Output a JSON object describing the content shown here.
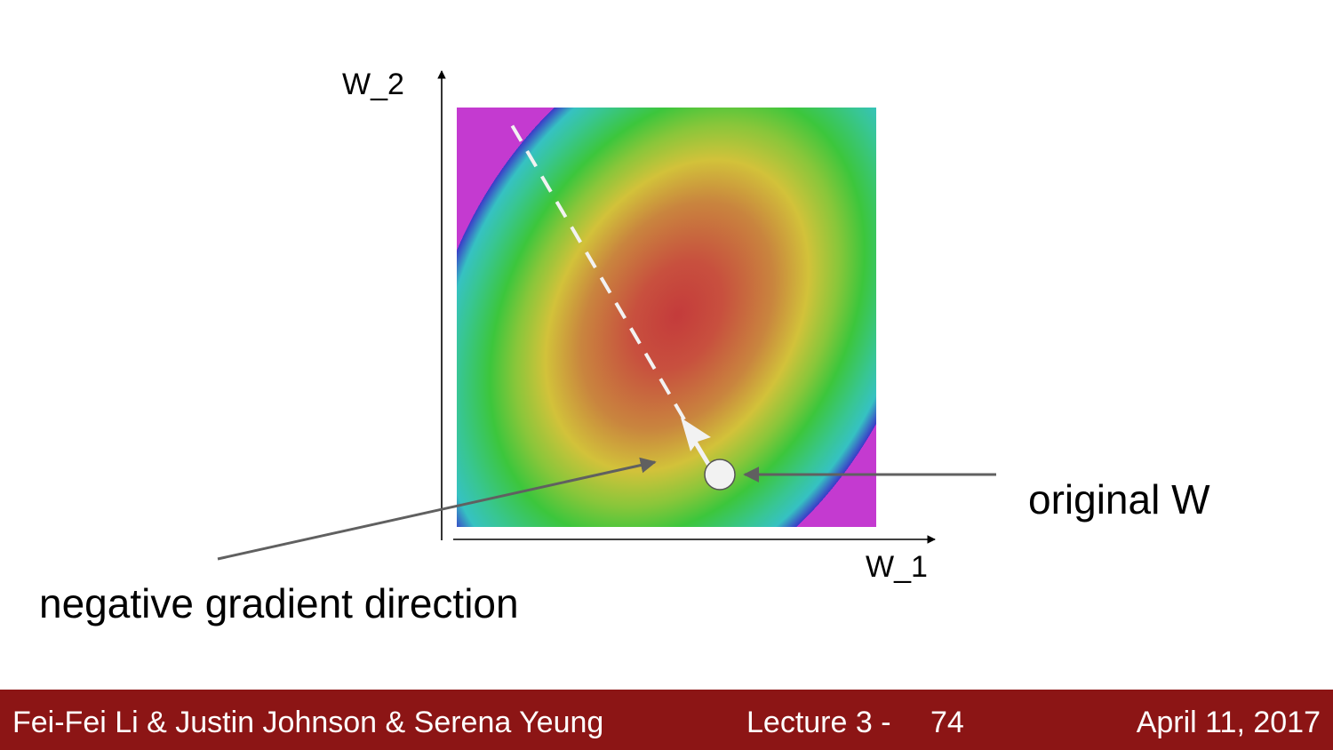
{
  "diagram": {
    "axis_y_label": "W_2",
    "axis_x_label": "W_1",
    "annotation_original": "original W",
    "annotation_gradient": "negative gradient direction"
  },
  "colors": {
    "footer_bg": "#8c1515",
    "center": "#c43b3b",
    "ring_yellow": "#d2c23a",
    "ring_green": "#3cc63c",
    "ring_cyan": "#36c2c2",
    "ring_blue": "#3a3ac8",
    "ring_magenta": "#c43ad0",
    "dashed_path": "#f2f2f2",
    "annotation_arrow": "#606060"
  },
  "footer": {
    "authors": "Fei-Fei Li & Justin Johnson & Serena Yeung",
    "lecture": "Lecture 3 -",
    "slide_number": "74",
    "date": "April 11, 2017"
  }
}
